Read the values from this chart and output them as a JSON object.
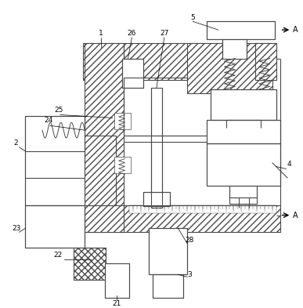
{
  "bg_color": "#ffffff",
  "lc": "#4a4a4a",
  "figsize": [
    3.87,
    3.93
  ],
  "dpi": 100
}
